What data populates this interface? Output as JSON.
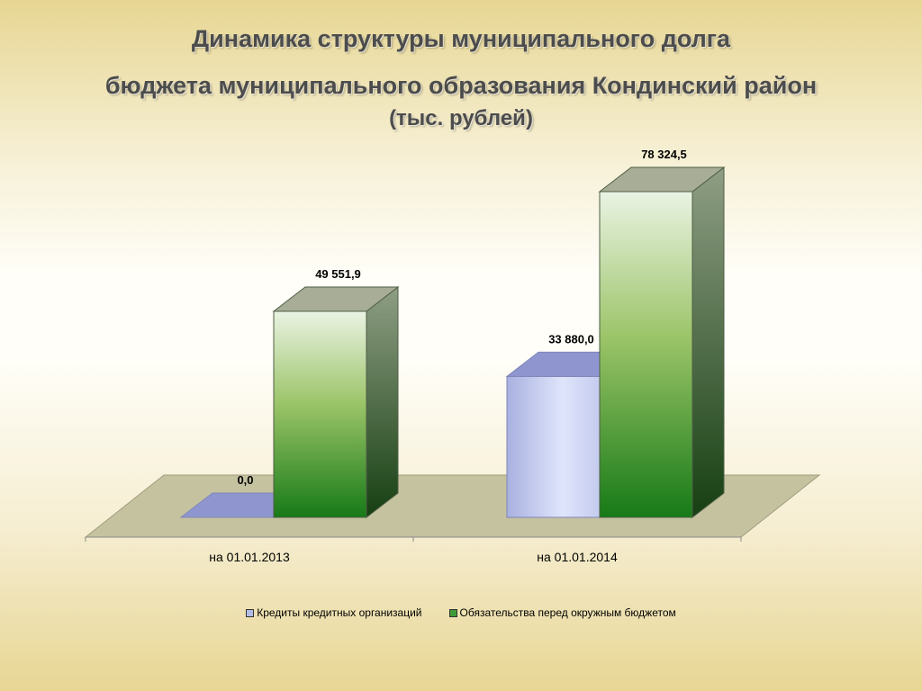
{
  "title_line1": "Динамика структуры муниципального долга",
  "title_line2": "бюджета муниципального образования Кондинский район",
  "title_line3": "(тыс. рублей)",
  "chart_data": {
    "type": "bar",
    "categories": [
      "на 01.01.2013",
      "на 01.01.2014"
    ],
    "series": [
      {
        "name": "Кредиты кредитных организаций",
        "values": [
          0.0,
          33880.0
        ],
        "labels": [
          "0,0",
          "33 880,0"
        ],
        "color": "#b4bde8"
      },
      {
        "name": "Обязательства перед окружным бюджетом",
        "values": [
          49551.9,
          78324.5
        ],
        "labels": [
          "49 551,9",
          "78 324,5"
        ],
        "color": "#3f9a3a"
      }
    ],
    "grid": false,
    "legend": "bottom",
    "style": "3d"
  }
}
